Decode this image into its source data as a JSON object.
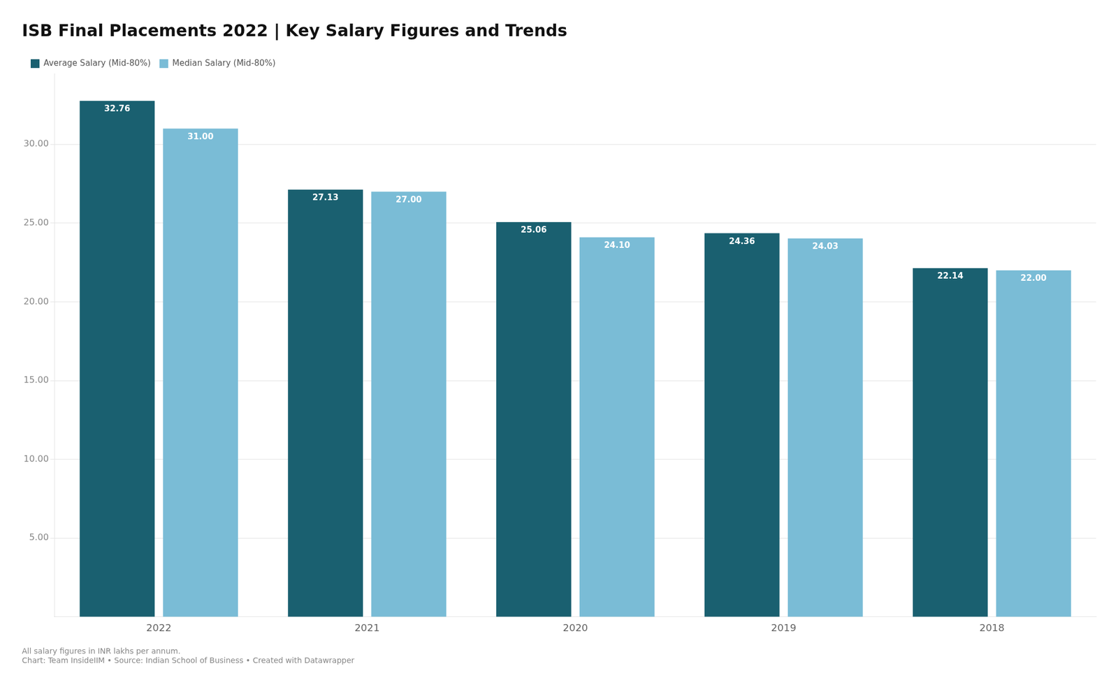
{
  "chart_data": {
    "type": "bar",
    "title": "ISB Final Placements 2022 | Key Salary Figures and Trends",
    "categories": [
      "2022",
      "2021",
      "2020",
      "2019",
      "2018"
    ],
    "series": [
      {
        "name": "Average Salary (Mid-80%)",
        "color": "#1a6070",
        "values": [
          32.76,
          27.13,
          25.06,
          24.36,
          22.14
        ],
        "value_labels": [
          "32.76",
          "27.13",
          "25.06",
          "24.36",
          "22.14"
        ]
      },
      {
        "name": "Median Salary (Mid-80%)",
        "color": "#7abcd6",
        "values": [
          31.0,
          27.0,
          24.1,
          24.03,
          22.0
        ],
        "value_labels": [
          "31.00",
          "27.00",
          "24.10",
          "24.03",
          "22.00"
        ]
      }
    ],
    "ylim": [
      0,
      34.5
    ],
    "yticks": [
      {
        "value": 5,
        "label": "5.00"
      },
      {
        "value": 10,
        "label": "10.00"
      },
      {
        "value": 15,
        "label": "15.00"
      },
      {
        "value": 20,
        "label": "20.00"
      },
      {
        "value": 25,
        "label": "25.00"
      },
      {
        "value": 30,
        "label": "30.00"
      }
    ],
    "grid": true,
    "legend": "upper left",
    "data_labels": true,
    "annotations": [
      "All salary figures in INR lakhs per annum.",
      "Chart: Team InsideIIM • Source: Indian School of Business • Created with Datawrapper"
    ]
  }
}
